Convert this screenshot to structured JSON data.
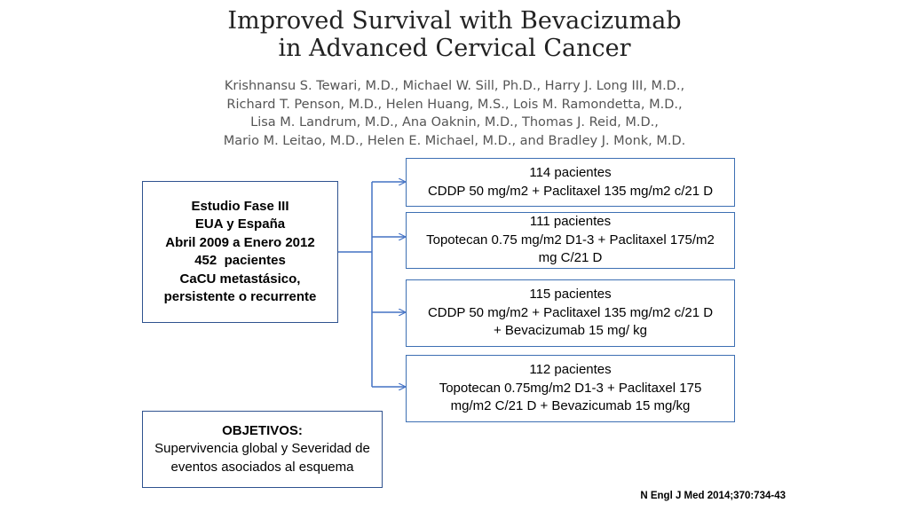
{
  "paper": {
    "title_line1": "Improved Survival with Bevacizumab",
    "title_line2": "in Advanced Cervical Cancer",
    "authors": [
      "Krishnansu S. Tewari, M.D., Michael W. Sill, Ph.D., Harry J. Long III, M.D.,",
      "Richard T. Penson, M.D., Helen Huang, M.S., Lois M. Ramondetta, M.D.,",
      "Lisa M. Landrum, M.D., Ana Oaknin, M.D., Thomas J. Reid, M.D.,",
      "Mario M. Leitao, M.D., Helen E. Michael, M.D., and Bradley J. Monk, M.D."
    ]
  },
  "study": {
    "lines": [
      "Estudio Fase III",
      "EUA y España",
      "Abril 2009 a Enero 2012",
      "452  pacientes",
      "CaCU metastásico,",
      "persistente o recurrente"
    ]
  },
  "arms": [
    {
      "patients": "114 pacientes",
      "lines": [
        "CDDP 50 mg/m2 + Paclitaxel 135 mg/m2 c/21 D"
      ]
    },
    {
      "patients": "111 pacientes",
      "lines": [
        "Topotecan 0.75 mg/m2 D1-3 + Paclitaxel 175/m2",
        "mg C/21 D"
      ]
    },
    {
      "patients": "115 pacientes",
      "lines": [
        "CDDP 50 mg/m2 + Paclitaxel 135 mg/m2 c/21 D",
        "+ Bevacizumab 15 mg/ kg"
      ]
    },
    {
      "patients": "112 pacientes",
      "lines": [
        "Topotecan 0.75mg/m2 D1-3 + Paclitaxel 175",
        "mg/m2 C/21 D + Bevazicumab 15 mg/kg"
      ]
    }
  ],
  "objectives": {
    "title": "OBJETIVOS:",
    "lines": [
      "Supervivencia global y Severidad de",
      "eventos asociados al esquema"
    ]
  },
  "citation": "N Engl J Med 2014;370:734-43",
  "colors": {
    "box_border": "#3d6fb3",
    "connector": "#4472c4"
  }
}
